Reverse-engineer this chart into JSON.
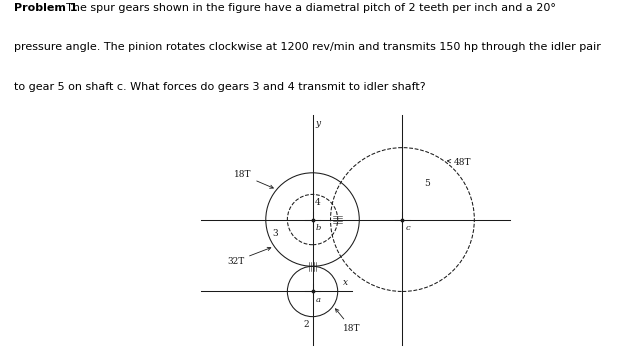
{
  "bg_color": "#ffffff",
  "text_color": "#000000",
  "fig_width": 6.24,
  "fig_height": 3.49,
  "dpi": 100,
  "problem_bold": "Problem 1",
  "problem_rest": ". The spur gears shown in the figure have a diametral pitch of 2 teeth per inch and a 20°\npressure angle. The pinion rotates clockwise at 1200 rev/min and transmits 150 hp through the idler pair\nto gear 5 on shaft c. What forces do gears 3 and 4 transmit to idler shaft?",
  "text_fontsize": 8.0,
  "diagram_fontsize": 6.5,
  "shaft_b": [
    0.0,
    0.0
  ],
  "shaft_a": [
    0.0,
    -1.0
  ],
  "shaft_c": [
    1.25,
    0.0
  ],
  "gear2_r": 0.35,
  "gear3_r": 0.65,
  "gear4_r": 0.35,
  "gear5_r": 1.0,
  "xmin": -1.6,
  "xmax": 2.8,
  "ymin": -1.8,
  "ymax": 1.5
}
